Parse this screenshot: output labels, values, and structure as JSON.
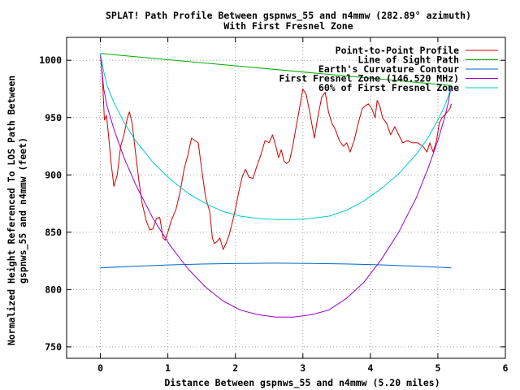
{
  "chart_data": {
    "type": "line",
    "title_line1": "SPLAT! Path Profile Between gspnws_55 and n4mmw (282.89° azimuth)",
    "title_line2": "With First Fresnel Zone",
    "xlabel": "Distance Between gspnws_55 and n4mmw (5.20 miles)",
    "ylabel_line1": "Normalized Height Referenced To LOS Path Between",
    "ylabel_line2": "gspnws_55 and n4mmw (feet)",
    "xlim": [
      -0.5,
      6
    ],
    "ylim": [
      740,
      1020
    ],
    "xticks": [
      0,
      1,
      2,
      3,
      4,
      5,
      6
    ],
    "yticks": [
      750,
      800,
      850,
      900,
      950,
      1000
    ],
    "grid": true,
    "legend_position": "top-right",
    "series": [
      {
        "name": "Point-to-Point Profile",
        "color": "#cc0000",
        "points": [
          [
            0.0,
            1005
          ],
          [
            0.03,
            985
          ],
          [
            0.06,
            948
          ],
          [
            0.09,
            952
          ],
          [
            0.12,
            935
          ],
          [
            0.16,
            910
          ],
          [
            0.2,
            890
          ],
          [
            0.25,
            900
          ],
          [
            0.3,
            925
          ],
          [
            0.35,
            935
          ],
          [
            0.4,
            950
          ],
          [
            0.43,
            955
          ],
          [
            0.47,
            945
          ],
          [
            0.52,
            920
          ],
          [
            0.57,
            895
          ],
          [
            0.62,
            875
          ],
          [
            0.68,
            860
          ],
          [
            0.73,
            852
          ],
          [
            0.78,
            853
          ],
          [
            0.83,
            862
          ],
          [
            0.88,
            863
          ],
          [
            0.93,
            845
          ],
          [
            0.96,
            843
          ],
          [
            1.0,
            850
          ],
          [
            1.05,
            860
          ],
          [
            1.12,
            870
          ],
          [
            1.18,
            885
          ],
          [
            1.24,
            905
          ],
          [
            1.3,
            918
          ],
          [
            1.35,
            932
          ],
          [
            1.4,
            930
          ],
          [
            1.45,
            928
          ],
          [
            1.5,
            905
          ],
          [
            1.56,
            880
          ],
          [
            1.62,
            868
          ],
          [
            1.66,
            845
          ],
          [
            1.69,
            840
          ],
          [
            1.73,
            842
          ],
          [
            1.77,
            845
          ],
          [
            1.82,
            835
          ],
          [
            1.86,
            840
          ],
          [
            1.91,
            848
          ],
          [
            1.96,
            860
          ],
          [
            2.0,
            870
          ],
          [
            2.05,
            885
          ],
          [
            2.1,
            898
          ],
          [
            2.15,
            905
          ],
          [
            2.2,
            898
          ],
          [
            2.26,
            897
          ],
          [
            2.32,
            908
          ],
          [
            2.38,
            918
          ],
          [
            2.44,
            930
          ],
          [
            2.5,
            928
          ],
          [
            2.55,
            935
          ],
          [
            2.6,
            925
          ],
          [
            2.64,
            915
          ],
          [
            2.68,
            922
          ],
          [
            2.72,
            912
          ],
          [
            2.76,
            910
          ],
          [
            2.8,
            912
          ],
          [
            2.85,
            925
          ],
          [
            2.9,
            942
          ],
          [
            2.95,
            958
          ],
          [
            3.0,
            975
          ],
          [
            3.05,
            970
          ],
          [
            3.1,
            955
          ],
          [
            3.14,
            942
          ],
          [
            3.17,
            932
          ],
          [
            3.22,
            950
          ],
          [
            3.28,
            968
          ],
          [
            3.33,
            972
          ],
          [
            3.38,
            955
          ],
          [
            3.43,
            945
          ],
          [
            3.48,
            940
          ],
          [
            3.54,
            930
          ],
          [
            3.6,
            925
          ],
          [
            3.65,
            928
          ],
          [
            3.7,
            920
          ],
          [
            3.76,
            930
          ],
          [
            3.82,
            945
          ],
          [
            3.88,
            958
          ],
          [
            3.92,
            960
          ],
          [
            3.97,
            962
          ],
          [
            4.02,
            958
          ],
          [
            4.07,
            950
          ],
          [
            4.1,
            965
          ],
          [
            4.14,
            960
          ],
          [
            4.18,
            950
          ],
          [
            4.24,
            945
          ],
          [
            4.3,
            935
          ],
          [
            4.36,
            942
          ],
          [
            4.42,
            935
          ],
          [
            4.48,
            928
          ],
          [
            4.55,
            930
          ],
          [
            4.62,
            928
          ],
          [
            4.7,
            928
          ],
          [
            4.78,
            925
          ],
          [
            4.84,
            920
          ],
          [
            4.88,
            928
          ],
          [
            4.93,
            920
          ],
          [
            4.98,
            930
          ],
          [
            5.02,
            945
          ],
          [
            5.06,
            950
          ],
          [
            5.1,
            952
          ],
          [
            5.14,
            955
          ],
          [
            5.18,
            958
          ],
          [
            5.2,
            962
          ]
        ]
      },
      {
        "name": "Line of Sight Path",
        "color": "#00aa00",
        "points": [
          [
            0.0,
            1006
          ],
          [
            5.2,
            978
          ]
        ]
      },
      {
        "name": "Earth's Curvature Contour",
        "color": "#0066cc",
        "points": [
          [
            0.0,
            819
          ],
          [
            0.52,
            820.4
          ],
          [
            1.04,
            821.5
          ],
          [
            1.56,
            822.3
          ],
          [
            2.08,
            822.8
          ],
          [
            2.6,
            823
          ],
          [
            3.12,
            822.8
          ],
          [
            3.64,
            822.3
          ],
          [
            4.16,
            821.5
          ],
          [
            4.68,
            820.4
          ],
          [
            5.2,
            819
          ]
        ]
      },
      {
        "name": "First Fresnel Zone (146.520 MHz)",
        "color": "#9900cc",
        "points": [
          [
            0.0,
            1006
          ],
          [
            0.05,
            975
          ],
          [
            0.1,
            960
          ],
          [
            0.2,
            940
          ],
          [
            0.35,
            915
          ],
          [
            0.52,
            892
          ],
          [
            0.78,
            862
          ],
          [
            1.04,
            838
          ],
          [
            1.3,
            818
          ],
          [
            1.56,
            802
          ],
          [
            1.82,
            790
          ],
          [
            2.08,
            782
          ],
          [
            2.34,
            778
          ],
          [
            2.6,
            776
          ],
          [
            2.86,
            776
          ],
          [
            3.12,
            778
          ],
          [
            3.38,
            782
          ],
          [
            3.64,
            792
          ],
          [
            3.9,
            806
          ],
          [
            4.16,
            826
          ],
          [
            4.42,
            850
          ],
          [
            4.68,
            880
          ],
          [
            4.85,
            905
          ],
          [
            5.0,
            930
          ],
          [
            5.1,
            950
          ],
          [
            5.15,
            962
          ],
          [
            5.2,
            978
          ]
        ]
      },
      {
        "name": "60% of First Fresnel Zone",
        "color": "#00cccc",
        "points": [
          [
            0.0,
            1006
          ],
          [
            0.05,
            990
          ],
          [
            0.1,
            978
          ],
          [
            0.2,
            963
          ],
          [
            0.35,
            946
          ],
          [
            0.52,
            930
          ],
          [
            0.78,
            911
          ],
          [
            1.04,
            896
          ],
          [
            1.3,
            884
          ],
          [
            1.56,
            875
          ],
          [
            1.82,
            868
          ],
          [
            2.08,
            864
          ],
          [
            2.34,
            862
          ],
          [
            2.6,
            861
          ],
          [
            2.86,
            861
          ],
          [
            3.12,
            862
          ],
          [
            3.38,
            864
          ],
          [
            3.64,
            869
          ],
          [
            3.9,
            877
          ],
          [
            4.16,
            888
          ],
          [
            4.42,
            901
          ],
          [
            4.68,
            918
          ],
          [
            4.85,
            932
          ],
          [
            5.0,
            948
          ],
          [
            5.1,
            960
          ],
          [
            5.15,
            968
          ],
          [
            5.2,
            978
          ]
        ]
      }
    ]
  }
}
